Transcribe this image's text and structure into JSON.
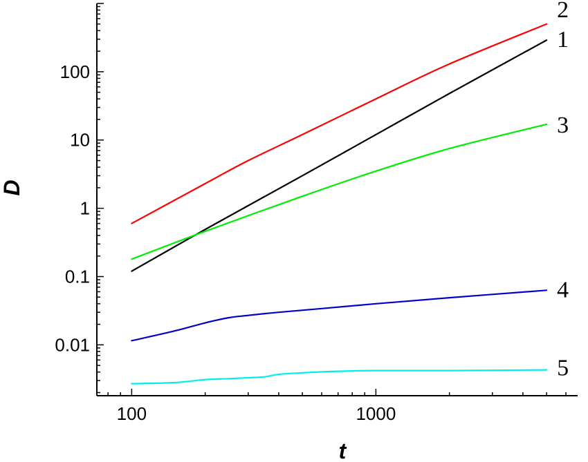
{
  "chart_data": {
    "type": "line",
    "xlabel": "t",
    "ylabel": "D",
    "xscale": "log",
    "yscale": "log",
    "xlim": [
      72,
      6700
    ],
    "ylim": [
      0.0018,
      1000
    ],
    "xticks": [
      100,
      1000
    ],
    "xtick_labels": [
      "100",
      "1000"
    ],
    "yticks": [
      0.01,
      0.1,
      1,
      10,
      100
    ],
    "ytick_labels": [
      "0.01",
      "0.1",
      "1",
      "10",
      "100"
    ],
    "grid": false,
    "series": [
      {
        "name": "1",
        "color": "#000000",
        "x": [
          100,
          200,
          500,
          1000,
          2000,
          5000
        ],
        "y": [
          0.12,
          0.49,
          3.0,
          12.0,
          48.0,
          290.0
        ]
      },
      {
        "name": "2",
        "color": "#ff0000",
        "x": [
          100,
          200,
          300,
          500,
          1000,
          2000,
          5000
        ],
        "y": [
          0.6,
          2.3,
          5.0,
          12.0,
          40.0,
          130.0,
          500.0
        ]
      },
      {
        "name": "3",
        "color": "#00ee00",
        "x": [
          100,
          200,
          500,
          1000,
          2000,
          5000
        ],
        "y": [
          0.18,
          0.46,
          1.5,
          3.5,
          7.5,
          17.0
        ]
      },
      {
        "name": "4",
        "color": "#0000cc",
        "x": [
          100,
          150,
          200,
          250,
          300,
          400,
          600,
          1000,
          2000,
          5000
        ],
        "y": [
          0.0115,
          0.016,
          0.021,
          0.025,
          0.027,
          0.03,
          0.034,
          0.04,
          0.049,
          0.063
        ]
      },
      {
        "name": "5",
        "color": "#00eeee",
        "x": [
          100,
          150,
          200,
          250,
          300,
          350,
          400,
          500,
          700,
          1000,
          2000,
          5000
        ],
        "y": [
          0.0027,
          0.0028,
          0.0031,
          0.0032,
          0.0033,
          0.0034,
          0.0037,
          0.0039,
          0.0041,
          0.0042,
          0.0042,
          0.0043
        ]
      }
    ]
  }
}
